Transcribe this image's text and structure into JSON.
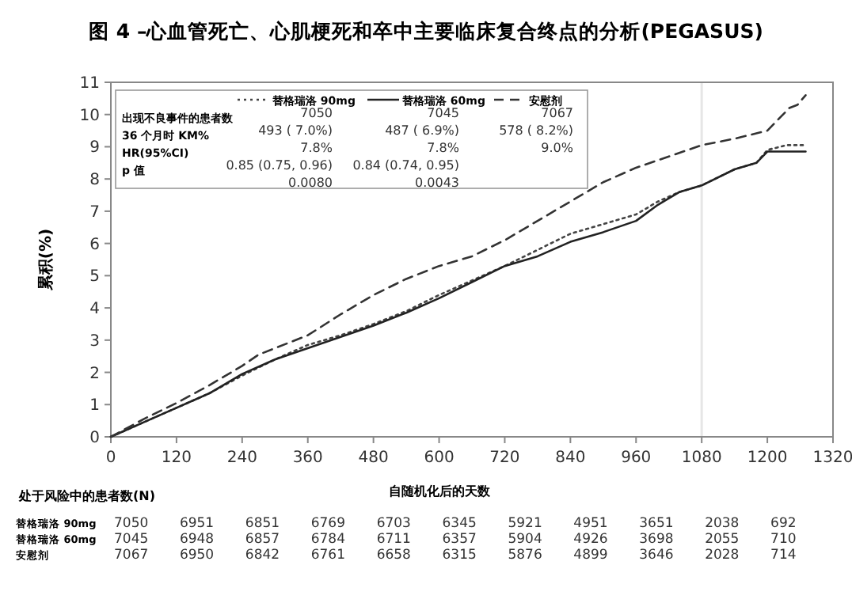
{
  "chart_data": {
    "type": "line",
    "title": "图 4 –心血管死亡、心肌梗死和卒中主要临床复合终点的分析(PEGASUS)",
    "xlabel": "自随机化后的天数",
    "ylabel": "累积(%)",
    "xlim": [
      0,
      1320
    ],
    "xticks": [
      0,
      120,
      240,
      360,
      480,
      600,
      720,
      840,
      960,
      1080,
      1200,
      1320
    ],
    "ylim": [
      0,
      11
    ],
    "yticks": [
      0,
      1,
      2,
      3,
      4,
      5,
      6,
      7,
      8,
      9,
      10,
      11
    ],
    "grid": false,
    "legend": "top",
    "marker": "none",
    "ref_lines": [
      {
        "axis": "x",
        "value": 1080,
        "color": "#e6e6e6"
      }
    ],
    "series": [
      {
        "name": "替格瑞洛 90mg",
        "color": "#444444",
        "line_style": "dotted",
        "x": [
          0,
          60,
          120,
          180,
          240,
          300,
          360,
          420,
          480,
          540,
          600,
          660,
          720,
          780,
          840,
          900,
          960,
          1000,
          1040,
          1080,
          1140,
          1180,
          1200,
          1235,
          1270
        ],
        "values": [
          0,
          0.45,
          0.9,
          1.35,
          1.9,
          2.4,
          2.85,
          3.15,
          3.5,
          3.9,
          4.4,
          4.85,
          5.3,
          5.8,
          6.3,
          6.6,
          6.9,
          7.3,
          7.6,
          7.8,
          8.3,
          8.5,
          8.9,
          9.05,
          9.05
        ]
      },
      {
        "name": "替格瑞洛 60mg",
        "color": "#222222",
        "line_style": "solid",
        "x": [
          0,
          60,
          120,
          180,
          240,
          300,
          360,
          420,
          480,
          540,
          600,
          660,
          720,
          780,
          840,
          900,
          960,
          1000,
          1040,
          1080,
          1140,
          1180,
          1200,
          1270
        ],
        "values": [
          0,
          0.45,
          0.9,
          1.35,
          1.95,
          2.4,
          2.75,
          3.1,
          3.45,
          3.85,
          4.3,
          4.8,
          5.3,
          5.6,
          6.05,
          6.35,
          6.7,
          7.2,
          7.6,
          7.8,
          8.3,
          8.5,
          8.85,
          8.85
        ]
      },
      {
        "name": "安慰剂",
        "color": "#333333",
        "line_style": "dashed",
        "x": [
          0,
          60,
          120,
          180,
          240,
          270,
          300,
          360,
          420,
          480,
          540,
          600,
          660,
          720,
          780,
          840,
          900,
          960,
          1020,
          1080,
          1140,
          1200,
          1240,
          1255,
          1270
        ],
        "values": [
          0,
          0.55,
          1.05,
          1.6,
          2.2,
          2.55,
          2.75,
          3.15,
          3.8,
          4.4,
          4.9,
          5.3,
          5.6,
          6.1,
          6.7,
          7.3,
          7.9,
          8.35,
          8.7,
          9.05,
          9.25,
          9.5,
          10.2,
          10.3,
          10.6
        ]
      }
    ],
    "annotations": [
      "出现不良事件的患者数",
      "36 个月时 KM%",
      "HR(95%CI)",
      "p 值",
      "7050",
      "7045",
      "7067",
      "493 ( 7.0%)",
      "487 ( 6.9%)",
      "578 ( 8.2%)",
      "7.8%",
      "7.8%",
      "9.0%",
      "0.85 (0.75, 0.96)",
      "0.84 (0.74, 0.95)",
      "0.0080",
      "0.0043",
      "处于风险中的患者数(N)",
      "7050",
      "6951",
      "6851",
      "6769",
      "6703",
      "6345",
      "5921",
      "4951",
      "3651",
      "2038",
      "692",
      "7045",
      "6948",
      "6857",
      "6784",
      "6711",
      "6357",
      "5904",
      "4926",
      "3698",
      "2055",
      "710",
      "7067",
      "6950",
      "6842",
      "6761",
      "6658",
      "6315",
      "5876",
      "4899",
      "3646",
      "2028",
      "714"
    ]
  }
}
